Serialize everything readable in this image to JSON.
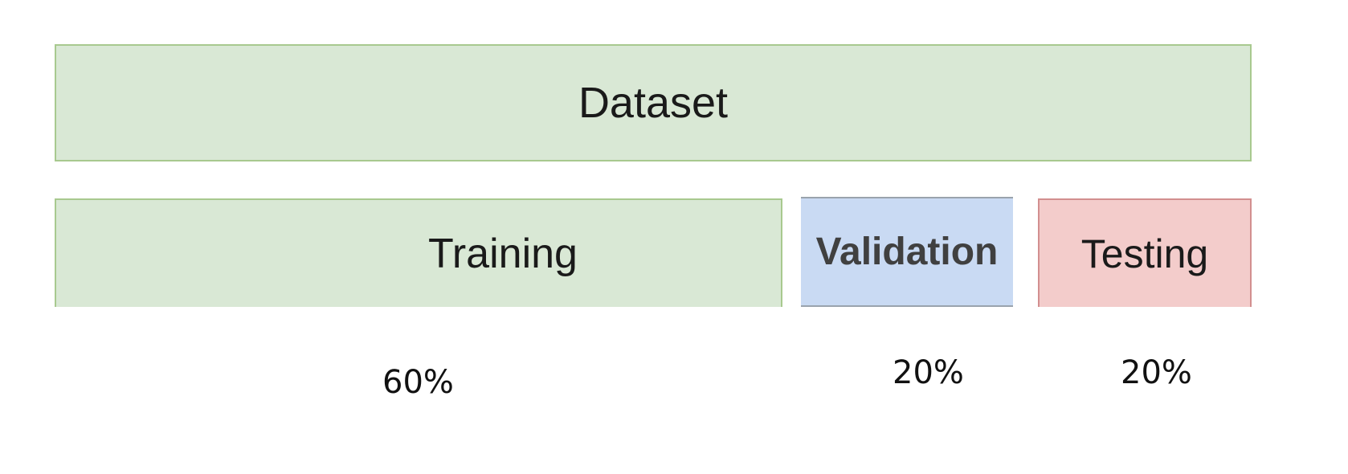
{
  "diagram": {
    "dataset": {
      "label": "Dataset",
      "color": "#d9e8d5",
      "border": "#a8c98f"
    },
    "splits": [
      {
        "label": "Training",
        "percent_label": "60%",
        "share": 0.6,
        "color": "#d9e8d5",
        "border": "#a8c98f"
      },
      {
        "label": "Validation",
        "percent_label": "20%",
        "share": 0.2,
        "color": "#c9daf3",
        "border": "#9aa3ad"
      },
      {
        "label": "Testing",
        "percent_label": "20%",
        "share": 0.2,
        "color": "#f3cccb",
        "border": "#d28f8f"
      }
    ]
  }
}
